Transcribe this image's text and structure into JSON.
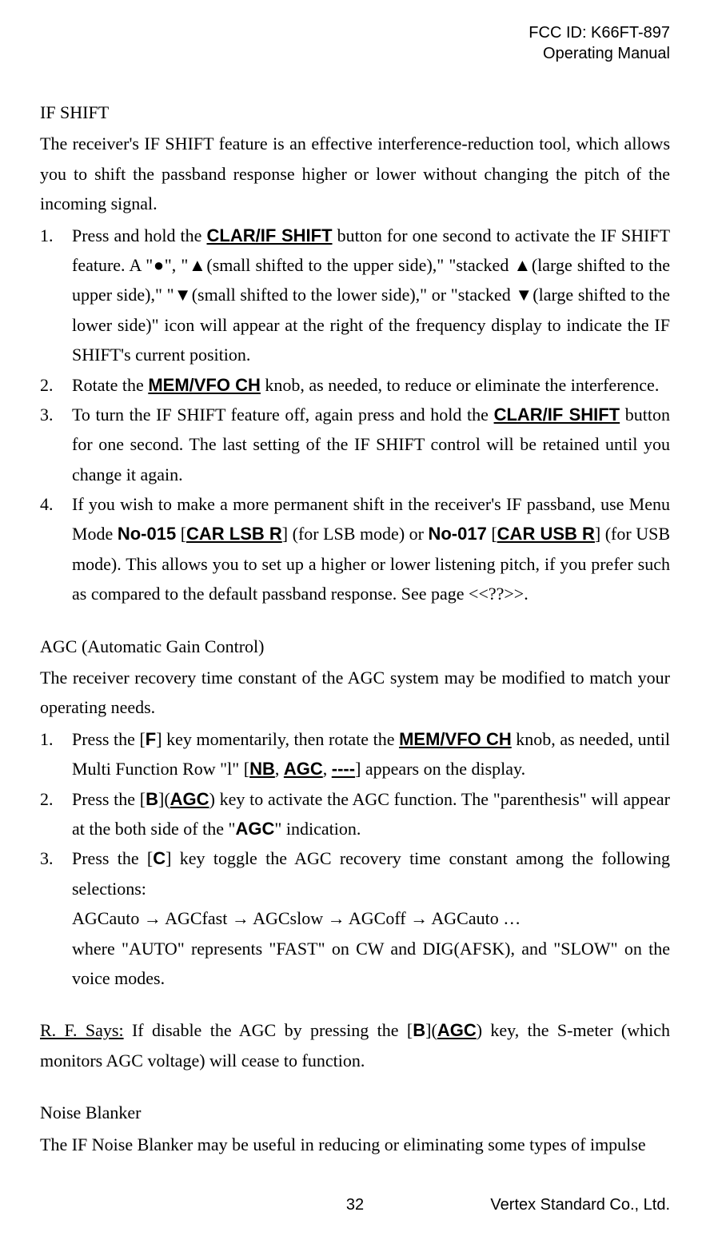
{
  "header": {
    "fcc": "FCC ID: K66FT-897",
    "manual": "Operating Manual"
  },
  "ifshift": {
    "title": "IF SHIFT",
    "intro": "The receiver's IF SHIFT feature is an effective interference-reduction tool, which allows you to shift the passband response higher or lower without changing the pitch of the incoming signal.",
    "item1_a": "Press and hold the ",
    "item1_btn": "CLAR/IF SHIFT",
    "item1_b": " button for one second to activate the IF SHIFT feature. A \"●\", \"▲(small shifted to the upper side),\" \"stacked ▲(large shifted to the upper side),\" \"▼(small shifted to the lower side),\" or \"stacked ▼(large shifted to the lower side)\" icon will appear at the right of the frequency display to indicate the IF SHIFT's current position.",
    "item2_a": "Rotate the ",
    "item2_knob": "MEM/VFO CH",
    "item2_b": " knob, as needed, to reduce or eliminate the interference.",
    "item3_a": "To turn the IF SHIFT feature off, again press and hold the ",
    "item3_btn": "CLAR/IF SHIFT",
    "item3_b": " button for one second. The last setting of the IF SHIFT control will be retained until you change it again.",
    "item4_a": "If you wish to make a more permanent shift in the receiver's IF passband, use Menu Mode ",
    "item4_no015": "No-015",
    "item4_b": " [",
    "item4_carlsb": "CAR LSB R",
    "item4_c": "] (for LSB mode) or ",
    "item4_no017": "No-017",
    "item4_d": " [",
    "item4_carusb": "CAR USB R",
    "item4_e": "] (for USB mode). This allows you to set up a higher or lower listening pitch, if you prefer such as compared to the default passband response. See page <<??>>."
  },
  "agc": {
    "title": "AGC (Automatic Gain Control)",
    "intro": "The receiver recovery time constant of the AGC system may be modified to match your operating needs.",
    "item1_a": "Press the [",
    "item1_F": "F",
    "item1_b": "] key momentarily, then rotate the ",
    "item1_knob": "MEM/VFO CH",
    "item1_c": " knob, as needed, until Multi Function Row \"l\" [",
    "item1_NB": "NB",
    "item1_d": ", ",
    "item1_AGC": "AGC",
    "item1_e": ", ",
    "item1_dash": "----",
    "item1_f": "] appears on the display.",
    "item2_a": "Press the [",
    "item2_B": "B",
    "item2_b": "](",
    "item2_AGC": "AGC",
    "item2_c": ") key to activate the AGC function. The \"parenthesis\" will appear at the both side of the \"",
    "item2_AGC2": "AGC",
    "item2_d": "\" indication.",
    "item3_a": "Press the [",
    "item3_C": "C",
    "item3_b": "] key toggle the AGC recovery time constant among the following selections:",
    "item3_seq": "AGCauto → AGCfast → AGCslow → AGCoff → AGCauto …",
    "item3_note": "where \"AUTO\" represents \"FAST\" on CW and DIG(AFSK), and \"SLOW\" on the voice modes."
  },
  "rf": {
    "lead": "R. F. Says:",
    "text_a": " If disable the AGC by pressing the [",
    "B": "B",
    "text_b": "](",
    "AGC": "AGC",
    "text_c": ") key, the S-meter (which monitors AGC voltage) will cease to function."
  },
  "nb": {
    "title": "Noise Blanker",
    "intro": "The IF Noise Blanker may be useful in reducing or eliminating some types of impulse"
  },
  "footer": {
    "page": "32",
    "company": "Vertex Standard Co., Ltd."
  },
  "nums": {
    "n1": "1.",
    "n2": "2.",
    "n3": "3.",
    "n4": "4."
  }
}
